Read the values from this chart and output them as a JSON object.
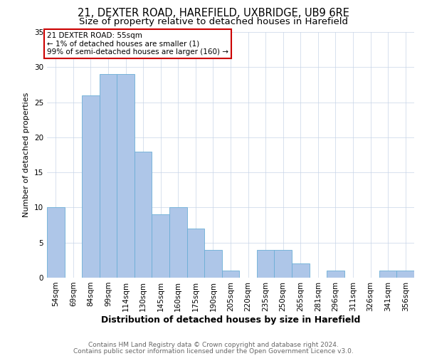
{
  "title": "21, DEXTER ROAD, HAREFIELD, UXBRIDGE, UB9 6RE",
  "subtitle": "Size of property relative to detached houses in Harefield",
  "xlabel": "Distribution of detached houses by size in Harefield",
  "ylabel": "Number of detached properties",
  "bar_labels": [
    "54sqm",
    "69sqm",
    "84sqm",
    "99sqm",
    "114sqm",
    "130sqm",
    "145sqm",
    "160sqm",
    "175sqm",
    "190sqm",
    "205sqm",
    "220sqm",
    "235sqm",
    "250sqm",
    "265sqm",
    "281sqm",
    "296sqm",
    "311sqm",
    "326sqm",
    "341sqm",
    "356sqm"
  ],
  "bar_values": [
    10,
    0,
    26,
    29,
    29,
    18,
    9,
    10,
    7,
    4,
    1,
    0,
    4,
    4,
    2,
    0,
    1,
    0,
    0,
    1,
    1
  ],
  "bar_color": "#aec6e8",
  "bar_edge_color": "#6baed6",
  "annotation_title": "21 DEXTER ROAD: 55sqm",
  "annotation_line1": "← 1% of detached houses are smaller (1)",
  "annotation_line2": "99% of semi-detached houses are larger (160) →",
  "annotation_box_color": "#ffffff",
  "annotation_box_edge_color": "#cc0000",
  "ylim": [
    0,
    35
  ],
  "yticks": [
    0,
    5,
    10,
    15,
    20,
    25,
    30,
    35
  ],
  "footer_line1": "Contains HM Land Registry data © Crown copyright and database right 2024.",
  "footer_line2": "Contains public sector information licensed under the Open Government Licence v3.0.",
  "background_color": "#ffffff",
  "grid_color": "#c8d4e8",
  "title_fontsize": 10.5,
  "subtitle_fontsize": 9.5,
  "xlabel_fontsize": 9,
  "ylabel_fontsize": 8,
  "tick_fontsize": 7.5,
  "footer_fontsize": 6.5
}
